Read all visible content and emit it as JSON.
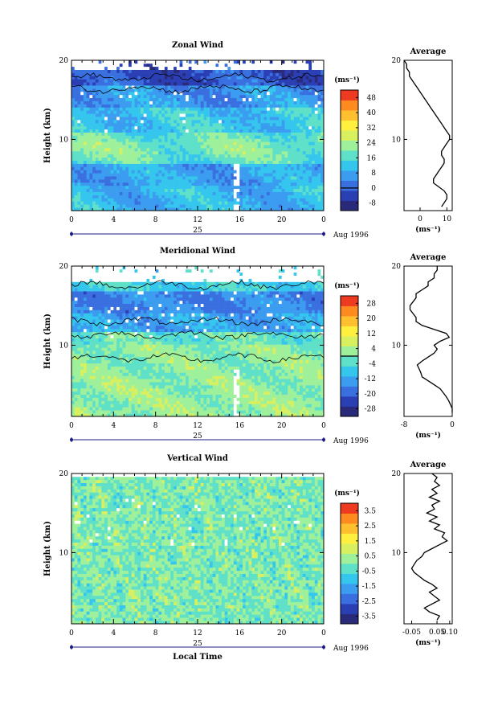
{
  "chart_data": [
    {
      "type": "heatmap",
      "title": "Zonal Wind",
      "xlabel": "",
      "ylabel": "Height (km)",
      "xticks": [
        "0",
        "4",
        "8",
        "12",
        "16",
        "20",
        "0"
      ],
      "yticks": [
        "10",
        "20"
      ],
      "ylim": [
        1,
        20
      ],
      "date_label": "25",
      "month_label": "Aug 1996",
      "unit": "(ms⁻¹)",
      "colorbar_ticks": [
        "-8",
        "0",
        "8",
        "16",
        "24",
        "32",
        "40",
        "48"
      ],
      "colorbar_range": [
        -12,
        52
      ],
      "colorbar_zero_line": 0,
      "profile": {
        "title": "Average",
        "unit": "(ms⁻¹)",
        "xticks": [
          "0",
          "10"
        ],
        "xlim": [
          -6,
          12
        ],
        "heights": [
          1.5,
          2,
          2.5,
          3,
          3.5,
          4,
          4.5,
          5,
          5.5,
          6,
          6.5,
          7,
          7.5,
          8,
          8.5,
          9,
          9.5,
          10,
          10.5,
          11,
          11.5,
          12,
          12.5,
          13,
          13.5,
          14,
          14.5,
          15,
          15.5,
          16,
          16.5,
          17,
          17.5,
          18,
          18.5,
          19,
          19.5,
          20
        ],
        "values": [
          8,
          9,
          10,
          10,
          9,
          7,
          5,
          5,
          6,
          7,
          8,
          9,
          9,
          8,
          8,
          9,
          10,
          11,
          11,
          10,
          9,
          8,
          7,
          6,
          5,
          4,
          3,
          2,
          1,
          0,
          -1,
          -2,
          -3,
          -4,
          -4,
          -5,
          -5,
          -6
        ]
      }
    },
    {
      "type": "heatmap",
      "title": "Meridional Wind",
      "xlabel": "",
      "ylabel": "Height (km)",
      "xticks": [
        "0",
        "4",
        "8",
        "12",
        "16",
        "20",
        "0"
      ],
      "yticks": [
        "10",
        "20"
      ],
      "ylim": [
        1,
        20
      ],
      "date_label": "25",
      "month_label": "Aug 1996",
      "unit": "(ms⁻¹)",
      "colorbar_ticks": [
        "-28",
        "-20",
        "-12",
        "-4",
        "4",
        "12",
        "20",
        "28"
      ],
      "colorbar_range": [
        -32,
        32
      ],
      "colorbar_zero_line": 0,
      "profile": {
        "title": "Average",
        "unit": "(ms⁻¹)",
        "xticks": [
          "-8",
          "0"
        ],
        "xlim": [
          -8,
          0
        ],
        "heights": [
          1.5,
          2,
          2.5,
          3,
          3.5,
          4,
          4.5,
          5,
          5.5,
          6,
          6.5,
          7,
          7.5,
          8,
          8.5,
          9,
          9.5,
          10,
          10.5,
          11,
          11.5,
          12,
          12.5,
          13,
          13.5,
          14,
          14.5,
          15,
          15.5,
          16,
          16.5,
          17,
          17.5,
          18,
          18.5,
          19,
          19.5,
          20
        ],
        "values": [
          0,
          0,
          -0.3,
          -0.6,
          -1,
          -1.5,
          -2,
          -3,
          -4,
          -5,
          -5.2,
          -5.5,
          -5.8,
          -5,
          -4,
          -3,
          -2.5,
          -3,
          -2,
          -0.5,
          -1,
          -3,
          -5,
          -6,
          -6,
          -6.5,
          -7,
          -7,
          -6.5,
          -6,
          -6,
          -5,
          -4,
          -4,
          -3,
          -3,
          -2.5,
          -2.5
        ]
      }
    },
    {
      "type": "heatmap",
      "title": "Vertical Wind",
      "xlabel": "Local Time",
      "ylabel": "Height (km)",
      "xticks": [
        "0",
        "4",
        "8",
        "12",
        "16",
        "20",
        "0"
      ],
      "yticks": [
        "10",
        "20"
      ],
      "ylim": [
        1,
        20
      ],
      "date_label": "25",
      "month_label": "Aug 1996",
      "unit": "(ms⁻¹)",
      "colorbar_ticks": [
        "-3.5",
        "-2.5",
        "-1.5",
        "-0.5",
        "0.5",
        "1.5",
        "2.5",
        "3.5"
      ],
      "colorbar_range": [
        -4,
        4
      ],
      "colorbar_zero_line": null,
      "profile": {
        "title": "Average",
        "unit": "(ms⁻¹)",
        "xticks": [
          "-0.05",
          "0.05",
          "0.10"
        ],
        "xlim": [
          -0.08,
          0.11
        ],
        "heights": [
          1.5,
          2,
          2.5,
          3,
          3.5,
          4,
          4.5,
          5,
          5.5,
          6,
          6.5,
          7,
          7.5,
          8,
          8.5,
          9,
          9.5,
          10,
          10.5,
          11,
          11.5,
          12,
          12.5,
          13,
          13.5,
          14,
          14.5,
          15,
          15.5,
          16,
          16.5,
          17,
          17.5,
          18,
          18.5,
          19,
          19.5,
          20
        ],
        "values": [
          0.05,
          0.06,
          0.02,
          0.0,
          0.03,
          0.06,
          0.04,
          0.02,
          0.05,
          0.03,
          0.0,
          -0.02,
          -0.04,
          -0.05,
          -0.04,
          -0.03,
          -0.01,
          0.0,
          0.03,
          0.06,
          0.09,
          0.07,
          0.08,
          0.04,
          0.06,
          0.02,
          0.05,
          0.01,
          0.04,
          0.03,
          0.06,
          0.02,
          0.05,
          0.03,
          0.06,
          0.04,
          0.05,
          0.03
        ]
      }
    }
  ],
  "colors": {
    "colorbar": [
      "#2a2a7a",
      "#2b3fb5",
      "#3a6fe0",
      "#3b9cf0",
      "#35c6ee",
      "#5fe0c8",
      "#9ff09a",
      "#d8f060",
      "#fff040",
      "#ffc030",
      "#ff8a20",
      "#ee3a20"
    ],
    "masked": "#ffffff",
    "contour": "#000000",
    "time_line": "#1a1a80"
  }
}
